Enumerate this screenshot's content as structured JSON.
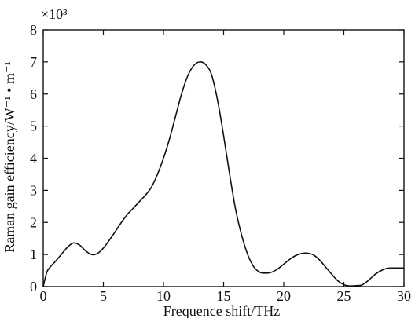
{
  "chart_data": {
    "type": "line",
    "xlabel": "Frequence shift/THz",
    "ylabel": "Raman gain efficiency/W⁻¹ • m⁻¹",
    "y_multiplier": "×10³",
    "xlim": [
      0,
      30
    ],
    "ylim": [
      0,
      8
    ],
    "x_ticks": [
      0,
      5,
      10,
      15,
      20,
      25,
      30
    ],
    "y_ticks": [
      0,
      1,
      2,
      3,
      4,
      5,
      6,
      7,
      8
    ],
    "grid": false,
    "series": [
      {
        "color": "#111111",
        "x": [
          0,
          0.3,
          0.6,
          1.0,
          1.5,
          2.0,
          2.5,
          3.0,
          3.5,
          4.0,
          4.5,
          5.0,
          5.5,
          6.0,
          6.5,
          7.0,
          7.5,
          8.0,
          8.5,
          9.0,
          9.5,
          10.0,
          10.5,
          11.0,
          11.5,
          12.0,
          12.5,
          13.0,
          13.5,
          14.0,
          14.5,
          15.0,
          15.5,
          16.0,
          16.5,
          17.0,
          17.5,
          18.0,
          18.5,
          19.0,
          19.5,
          20.0,
          20.5,
          21.0,
          21.5,
          22.0,
          22.5,
          23.0,
          23.5,
          24.0,
          24.5,
          25.0,
          25.5,
          26.0,
          26.5,
          27.0,
          27.5,
          28.0,
          28.5,
          29.0,
          29.5,
          30.0
        ],
        "y": [
          0,
          0.45,
          0.62,
          0.78,
          1.0,
          1.22,
          1.36,
          1.3,
          1.12,
          1.0,
          1.03,
          1.2,
          1.45,
          1.72,
          2.0,
          2.25,
          2.45,
          2.65,
          2.85,
          3.1,
          3.5,
          4.0,
          4.6,
          5.3,
          6.0,
          6.55,
          6.88,
          7.0,
          6.92,
          6.6,
          5.8,
          4.7,
          3.5,
          2.4,
          1.6,
          1.0,
          0.62,
          0.45,
          0.42,
          0.45,
          0.55,
          0.7,
          0.85,
          0.97,
          1.03,
          1.04,
          0.98,
          0.82,
          0.6,
          0.38,
          0.18,
          0.06,
          0.02,
          0.03,
          0.05,
          0.18,
          0.35,
          0.48,
          0.56,
          0.58,
          0.58,
          0.58
        ]
      }
    ]
  }
}
